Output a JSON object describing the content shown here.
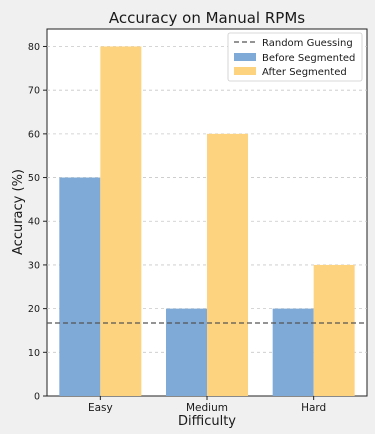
{
  "chart_data": {
    "type": "bar",
    "title": "Accuracy on Manual RPMs",
    "xlabel": "Difficulty",
    "ylabel": "Accuracy (%)",
    "categories": [
      "Easy",
      "Medium",
      "Hard"
    ],
    "series": [
      {
        "name": "Before Segmented",
        "values": [
          50,
          20,
          20
        ],
        "color": "#7fa9d6"
      },
      {
        "name": "After Segmented",
        "values": [
          80,
          60,
          30
        ],
        "color": "#fed37f"
      }
    ],
    "reference_line": {
      "name": "Random Guessing",
      "value": 16.7,
      "color": "#555555",
      "style": "dashed"
    },
    "ylim": [
      0,
      84
    ],
    "yticks": [
      0,
      10,
      20,
      30,
      40,
      50,
      60,
      70,
      80
    ],
    "grid": true,
    "legend": "top-right"
  }
}
